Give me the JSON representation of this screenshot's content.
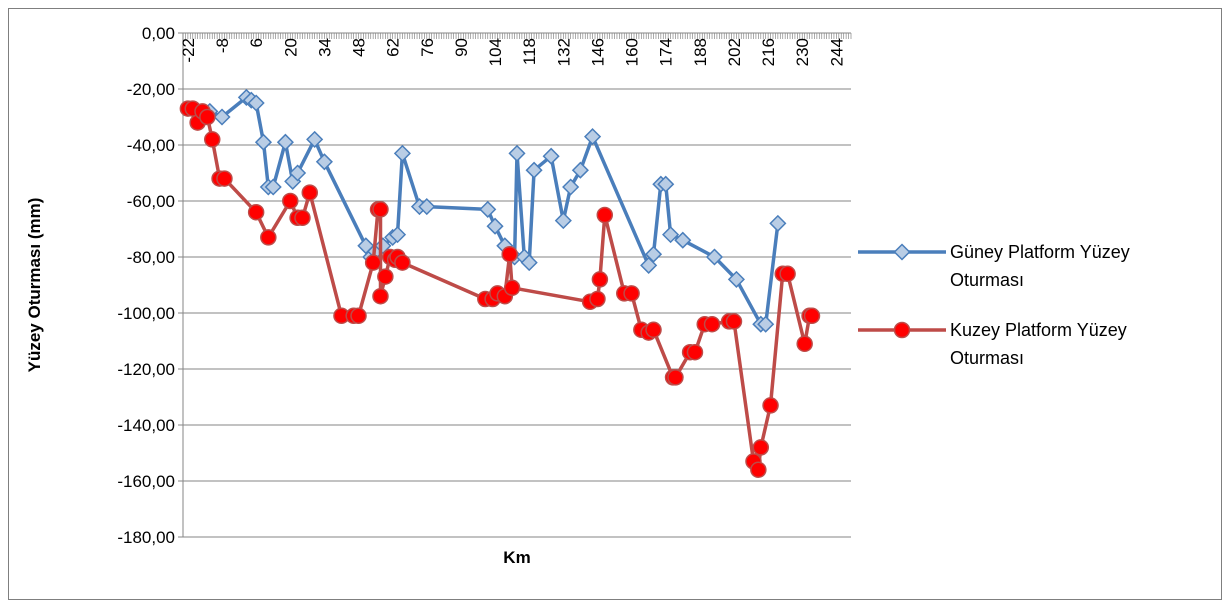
{
  "chart_data": {
    "type": "line",
    "title": "",
    "xlabel": "Km",
    "ylabel": "Yüzey Oturması (mm)",
    "xlim": [
      -24,
      250
    ],
    "ylim": [
      -180,
      0
    ],
    "y_ticks": [
      0,
      -20,
      -40,
      -60,
      -80,
      -100,
      -120,
      -140,
      -160,
      -180
    ],
    "y_tick_labels": [
      "0,00",
      "-20,00",
      "-40,00",
      "-60,00",
      "-80,00",
      "-100,00",
      "-120,00",
      "-140,00",
      "-160,00",
      "-180,00"
    ],
    "x_ticks": [
      -22,
      -8,
      6,
      20,
      34,
      48,
      62,
      76,
      90,
      104,
      118,
      132,
      146,
      160,
      174,
      188,
      202,
      216,
      230,
      244
    ],
    "x_tick_labels": [
      "-22",
      "-8",
      "6",
      "20",
      "34",
      "48",
      "62",
      "76",
      "90",
      "104",
      "118",
      "132",
      "146",
      "160",
      "174",
      "188",
      "202",
      "216",
      "230",
      "244"
    ],
    "grid": "horizontal",
    "legend_position": "right",
    "series": [
      {
        "name": "Güney Platform Yüzey Oturması",
        "color": "#4a7ebb",
        "marker": "diamond",
        "marker_fill": "#b9cde5",
        "points": [
          [
            -13,
            -28
          ],
          [
            -8,
            -30
          ],
          [
            2,
            -23
          ],
          [
            4,
            -24
          ],
          [
            6,
            -25
          ],
          [
            9,
            -39
          ],
          [
            11,
            -55
          ],
          [
            13,
            -55
          ],
          [
            18,
            -39
          ],
          [
            21,
            -53
          ],
          [
            23,
            -50
          ],
          [
            30,
            -38
          ],
          [
            34,
            -46
          ],
          [
            51,
            -76
          ],
          [
            53,
            -80
          ],
          [
            55,
            -78
          ],
          [
            58,
            -76
          ],
          [
            62,
            -73
          ],
          [
            64,
            -72
          ],
          [
            66,
            -43
          ],
          [
            73,
            -62
          ],
          [
            76,
            -62
          ],
          [
            101,
            -63
          ],
          [
            104,
            -69
          ],
          [
            108,
            -76
          ],
          [
            112,
            -80
          ],
          [
            113,
            -43
          ],
          [
            116,
            -80
          ],
          [
            118,
            -82
          ],
          [
            120,
            -49
          ],
          [
            127,
            -44
          ],
          [
            132,
            -67
          ],
          [
            135,
            -55
          ],
          [
            139,
            -49
          ],
          [
            144,
            -37
          ],
          [
            167,
            -83
          ],
          [
            169,
            -79
          ],
          [
            172,
            -54
          ],
          [
            174,
            -54
          ],
          [
            176,
            -72
          ],
          [
            181,
            -74
          ],
          [
            194,
            -80
          ],
          [
            203,
            -88
          ],
          [
            213,
            -104
          ],
          [
            215,
            -104
          ],
          [
            220,
            -68
          ]
        ]
      },
      {
        "name": "Kuzey Platform Yüzey Oturması",
        "color": "#be4b48",
        "marker": "circle",
        "marker_fill": "#ff0000",
        "points": [
          [
            -22,
            -27
          ],
          [
            -20,
            -27
          ],
          [
            -18,
            -32
          ],
          [
            -16,
            -28
          ],
          [
            -14,
            -30
          ],
          [
            -12,
            -38
          ],
          [
            -9,
            -52
          ],
          [
            -7,
            -52
          ],
          [
            6,
            -64
          ],
          [
            11,
            -73
          ],
          [
            20,
            -60
          ],
          [
            23,
            -66
          ],
          [
            25,
            -66
          ],
          [
            28,
            -57
          ],
          [
            41,
            -101
          ],
          [
            46,
            -101
          ],
          [
            48,
            -101
          ],
          [
            54,
            -82
          ],
          [
            56,
            -63
          ],
          [
            57,
            -63
          ],
          [
            57,
            -94
          ],
          [
            59,
            -87
          ],
          [
            61,
            -80
          ],
          [
            63,
            -81
          ],
          [
            64,
            -80
          ],
          [
            66,
            -82
          ],
          [
            100,
            -95
          ],
          [
            103,
            -95
          ],
          [
            105,
            -93
          ],
          [
            108,
            -94
          ],
          [
            110,
            -79
          ],
          [
            111,
            -91
          ],
          [
            143,
            -96
          ],
          [
            146,
            -95
          ],
          [
            147,
            -88
          ],
          [
            149,
            -65
          ],
          [
            157,
            -93
          ],
          [
            160,
            -93
          ],
          [
            164,
            -106
          ],
          [
            167,
            -107
          ],
          [
            169,
            -106
          ],
          [
            177,
            -123
          ],
          [
            178,
            -123
          ],
          [
            184,
            -114
          ],
          [
            186,
            -114
          ],
          [
            190,
            -104
          ],
          [
            193,
            -104
          ],
          [
            200,
            -103
          ],
          [
            202,
            -103
          ],
          [
            210,
            -153
          ],
          [
            212,
            -156
          ],
          [
            213,
            -148
          ],
          [
            217,
            -133
          ],
          [
            222,
            -86
          ],
          [
            224,
            -86
          ],
          [
            231,
            -111
          ],
          [
            233,
            -101
          ],
          [
            234,
            -101
          ]
        ]
      }
    ]
  }
}
